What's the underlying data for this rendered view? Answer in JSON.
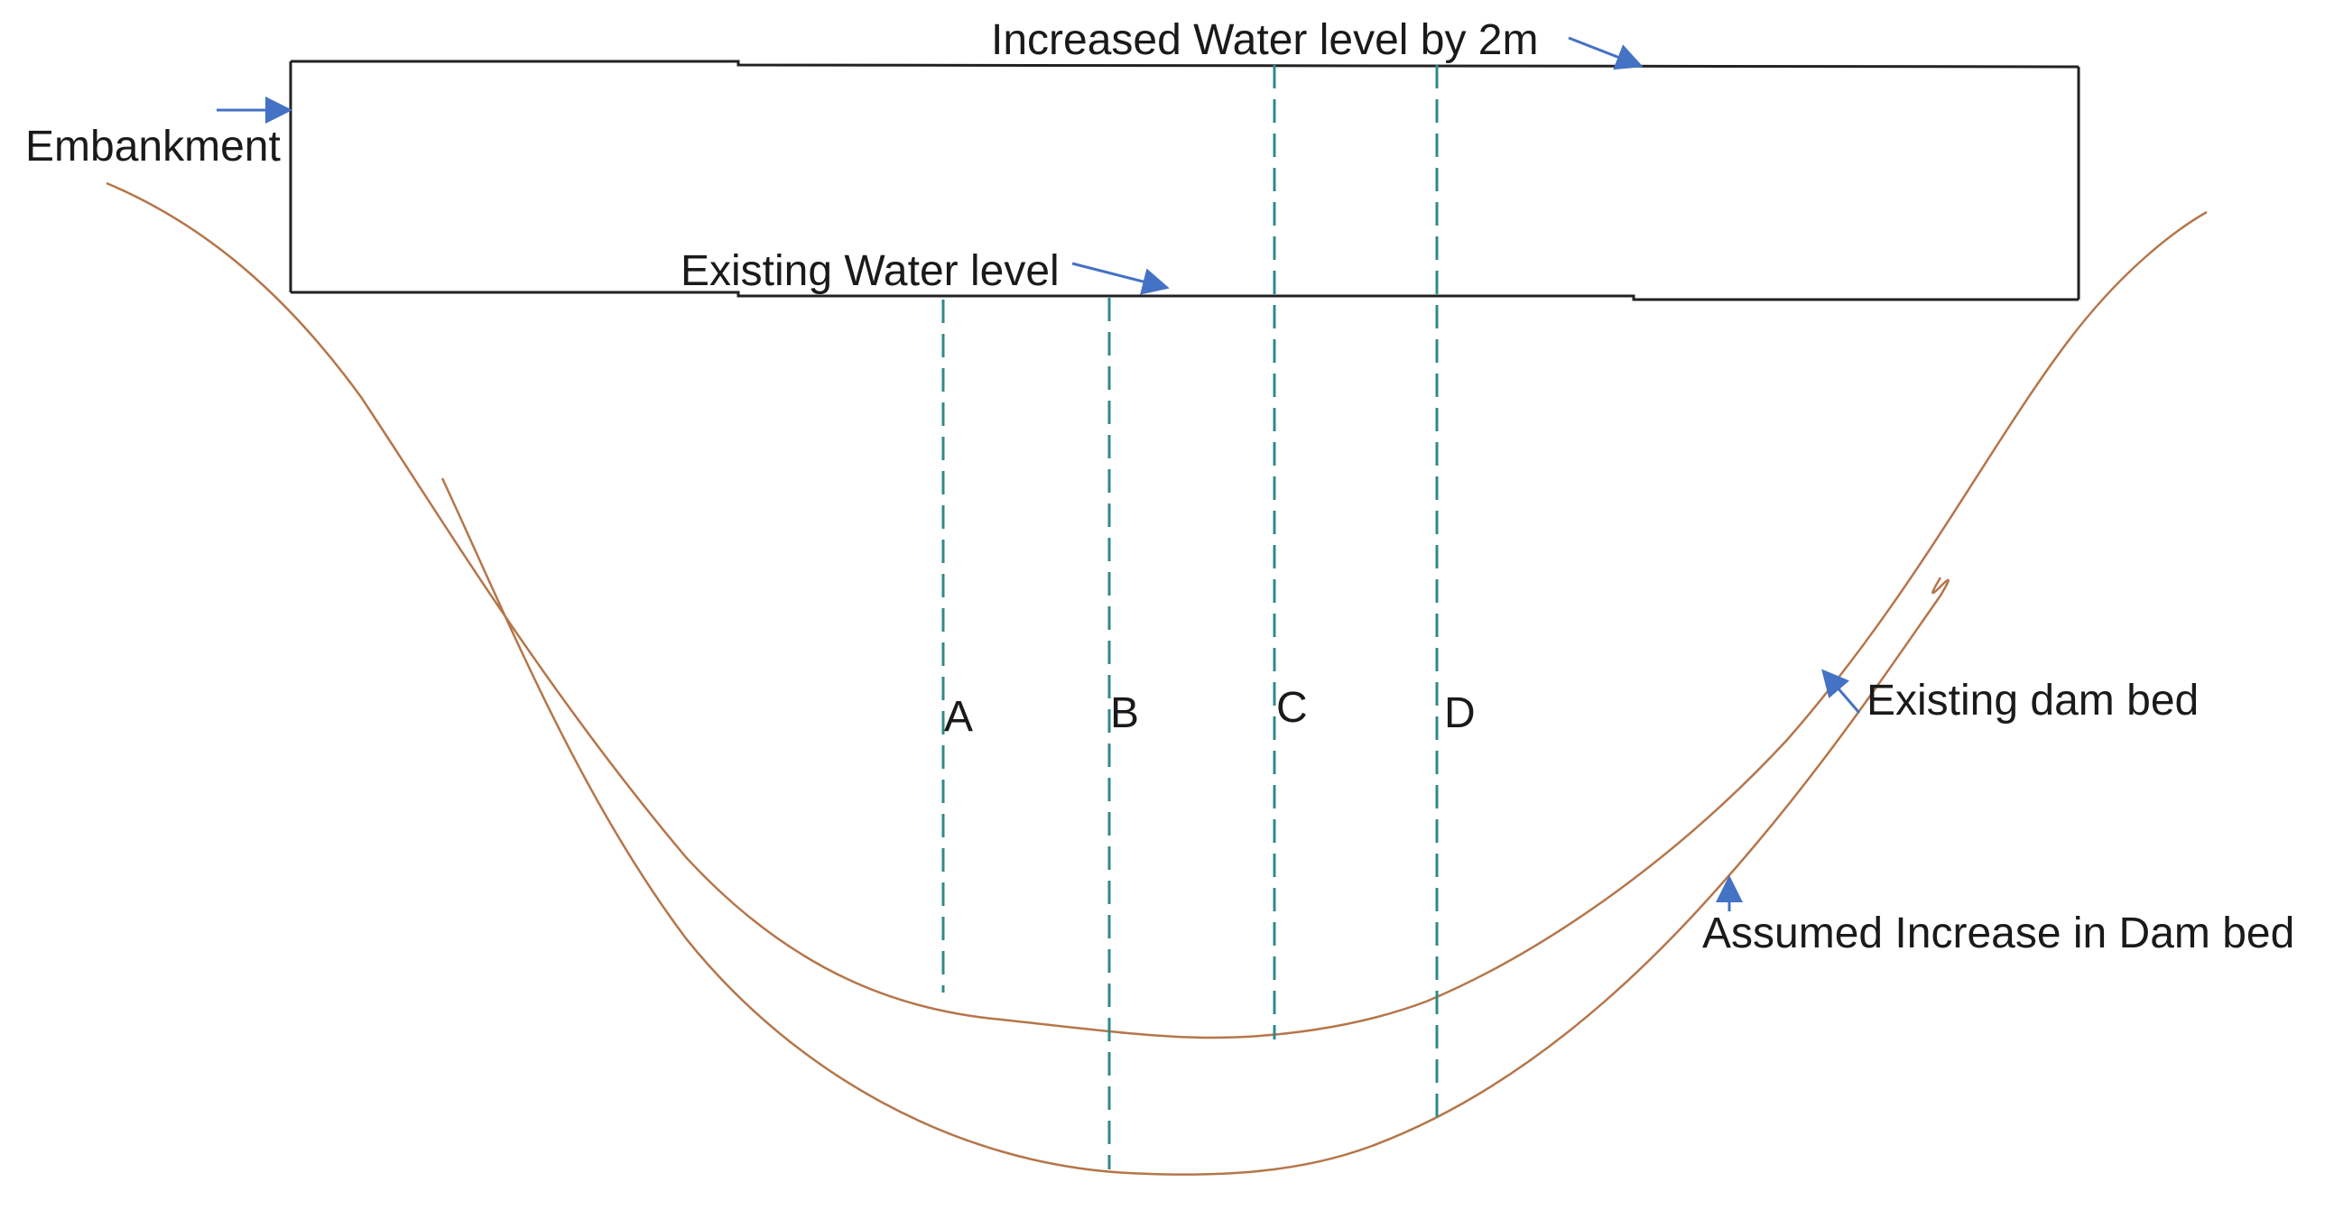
{
  "labels": {
    "increased_water_level": "Increased Water level by 2m",
    "embankment": "Embankment",
    "existing_water_level": "Existing Water level",
    "existing_dam_bed": "Existing dam bed",
    "assumed_increase": "Assumed Increase in Dam bed"
  },
  "sections": [
    "A",
    "B",
    "C",
    "D"
  ],
  "colors": {
    "bed_curve": "#b5764a",
    "section_lines": "#2f8a8a",
    "arrows": "#4472c4",
    "outline": "#222222"
  }
}
